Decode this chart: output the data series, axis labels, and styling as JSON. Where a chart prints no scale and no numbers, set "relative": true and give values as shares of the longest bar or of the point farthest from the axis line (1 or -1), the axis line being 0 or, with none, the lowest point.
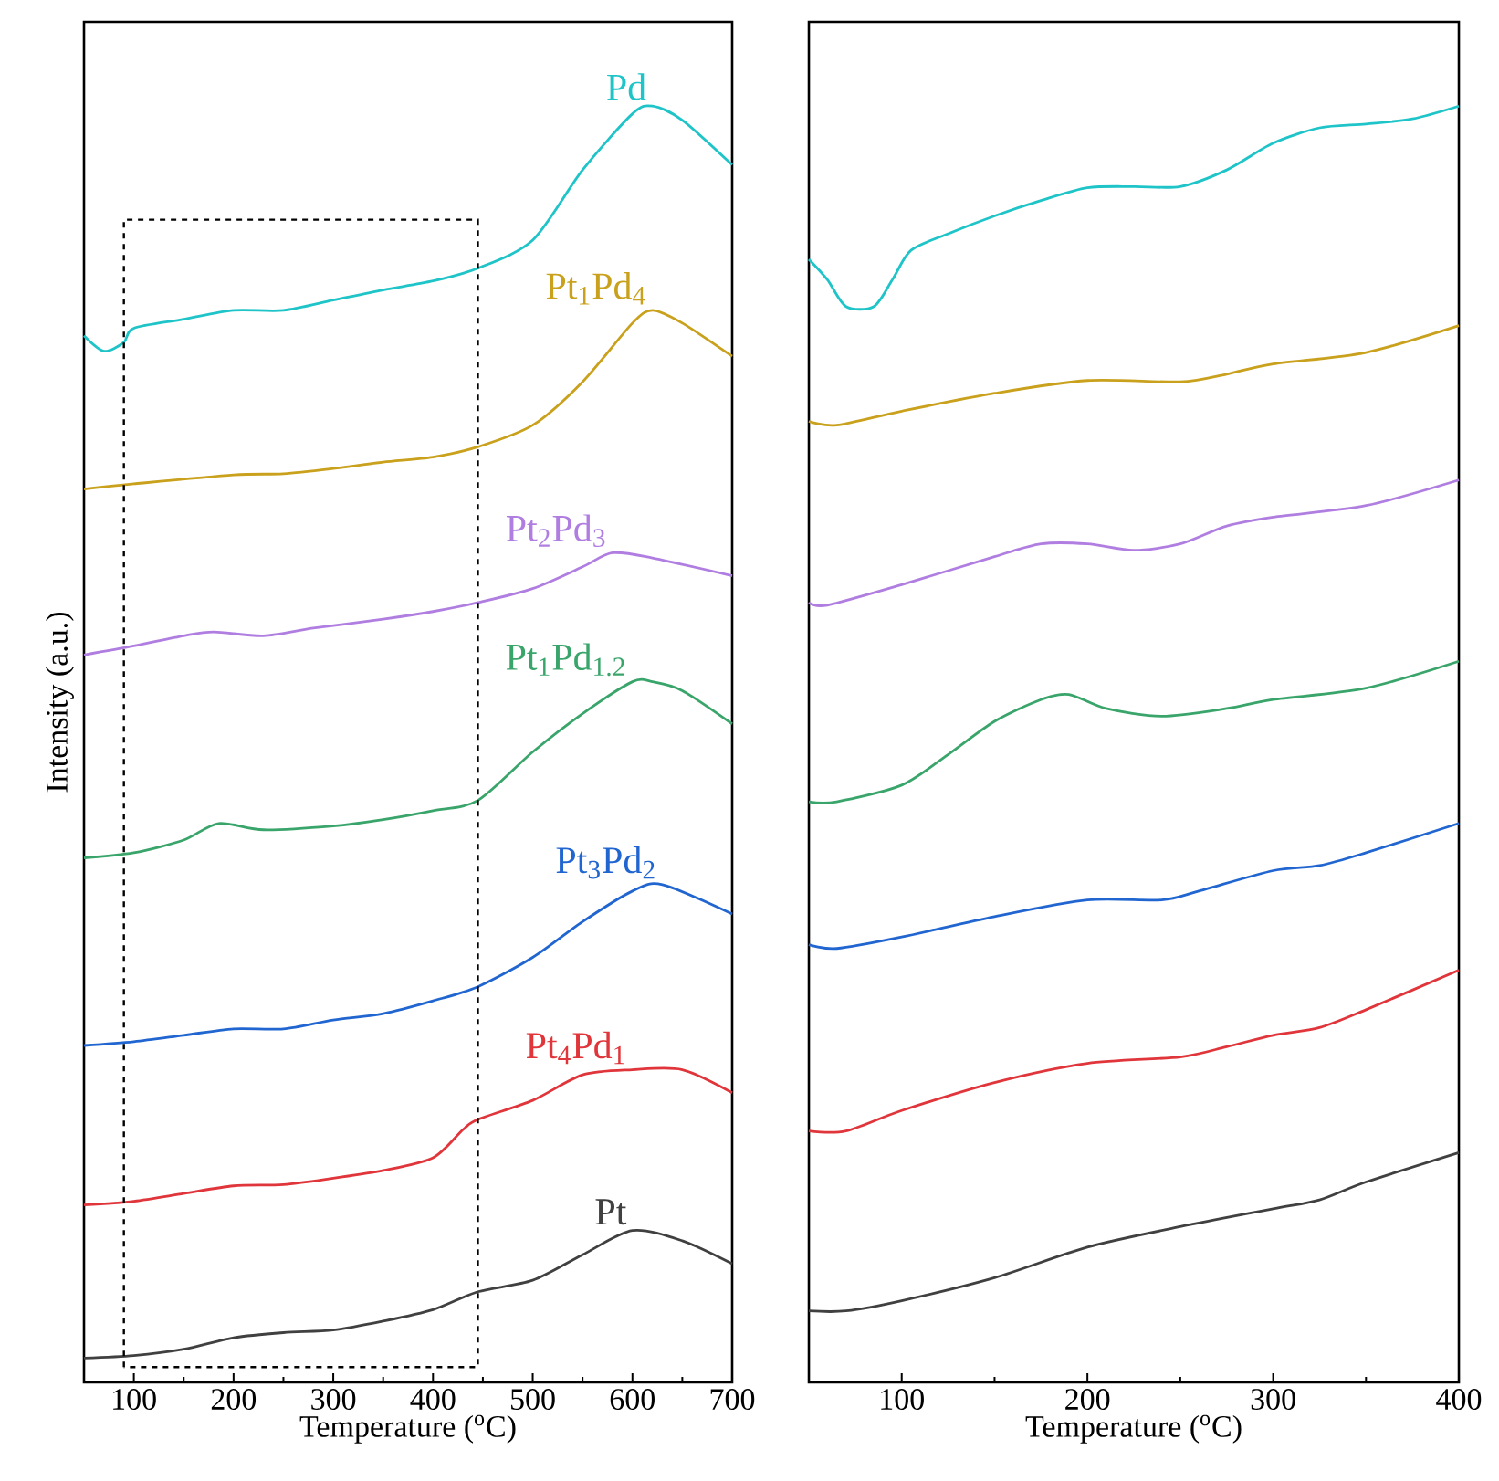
{
  "chart_data": [
    {
      "type": "line",
      "relative": true,
      "xlabel": "Temperature ($^{o}$C)",
      "ylabel": "Intensity (a.u.)",
      "xlim": [
        50,
        700
      ],
      "xticks": [
        100,
        200,
        300,
        400,
        500,
        600,
        700
      ],
      "line_style": "solid",
      "series": [
        {
          "name": "Pd",
          "color": "#1fc4c8",
          "x": [
            50,
            70,
            90,
            100,
            150,
            200,
            250,
            300,
            350,
            400,
            445,
            500,
            550,
            600,
            620,
            650,
            700
          ],
          "values": [
            0.82,
            0.808,
            0.815,
            0.826,
            0.833,
            0.84,
            0.84,
            0.848,
            0.856,
            0.863,
            0.873,
            0.895,
            0.95,
            0.994,
            1.0,
            0.989,
            0.954
          ]
        },
        {
          "name": "Pt$_{1}$Pd$_{4}$",
          "color": "#c9a11c",
          "x": [
            50,
            100,
            200,
            250,
            300,
            350,
            400,
            445,
            500,
            550,
            600,
            620,
            650,
            700
          ],
          "values": [
            0.7,
            0.704,
            0.711,
            0.712,
            0.716,
            0.721,
            0.725,
            0.733,
            0.75,
            0.784,
            0.83,
            0.84,
            0.83,
            0.804
          ]
        },
        {
          "name": "Pt$_{2}$Pd$_{3}$",
          "color": "#b07ee0",
          "x": [
            50,
            100,
            150,
            180,
            230,
            280,
            350,
            400,
            445,
            500,
            550,
            580,
            620,
            700
          ],
          "values": [
            0.57,
            0.577,
            0.585,
            0.588,
            0.585,
            0.591,
            0.598,
            0.604,
            0.611,
            0.622,
            0.639,
            0.65,
            0.646,
            0.632
          ]
        },
        {
          "name": "Pt$_{1}$Pd$_{1.2}$",
          "color": "#3aa56b",
          "x": [
            50,
            100,
            150,
            185,
            230,
            300,
            350,
            400,
            445,
            500,
            550,
            600,
            620,
            650,
            700
          ],
          "values": [
            0.411,
            0.415,
            0.425,
            0.438,
            0.433,
            0.436,
            0.441,
            0.448,
            0.456,
            0.494,
            0.524,
            0.549,
            0.549,
            0.542,
            0.516
          ]
        },
        {
          "name": "Pt$_{3}$Pd$_{2}$",
          "color": "#2166d0",
          "x": [
            50,
            100,
            150,
            200,
            250,
            300,
            350,
            400,
            445,
            500,
            550,
            600,
            630,
            700
          ],
          "values": [
            0.264,
            0.267,
            0.272,
            0.277,
            0.277,
            0.284,
            0.289,
            0.299,
            0.31,
            0.333,
            0.361,
            0.385,
            0.39,
            0.367
          ]
        },
        {
          "name": "Pt$_{4}$Pd$_{1}$",
          "color": "#e0353a",
          "x": [
            50,
            100,
            150,
            200,
            250,
            300,
            350,
            400,
            430,
            445,
            500,
            550,
            600,
            650,
            700
          ],
          "values": [
            0.139,
            0.142,
            0.148,
            0.154,
            0.155,
            0.16,
            0.166,
            0.176,
            0.198,
            0.206,
            0.221,
            0.241,
            0.245,
            0.245,
            0.227
          ]
        },
        {
          "name": "Pt",
          "color": "#404040",
          "x": [
            50,
            100,
            150,
            200,
            250,
            300,
            350,
            400,
            445,
            500,
            550,
            600,
            650,
            700
          ],
          "values": [
            0.019,
            0.021,
            0.026,
            0.035,
            0.039,
            0.041,
            0.048,
            0.057,
            0.071,
            0.08,
            0.1,
            0.119,
            0.111,
            0.093
          ]
        }
      ]
    },
    {
      "type": "line",
      "relative": true,
      "xlabel": "Temperature ($^{o}$C)",
      "xlim": [
        50,
        400
      ],
      "xticks": [
        100,
        200,
        300,
        400
      ],
      "line_style": "solid",
      "series": [
        {
          "color": "#1fc4c8",
          "x": [
            50,
            60,
            70,
            85,
            95,
            105,
            125,
            150,
            175,
            200,
            225,
            250,
            275,
            300,
            325,
            350,
            375,
            400
          ],
          "values": [
            0.88,
            0.864,
            0.843,
            0.843,
            0.864,
            0.887,
            0.9,
            0.914,
            0.926,
            0.936,
            0.937,
            0.937,
            0.95,
            0.971,
            0.983,
            0.986,
            0.99,
            1.0
          ]
        },
        {
          "color": "#c9a11c",
          "x": [
            50,
            65,
            100,
            150,
            200,
            250,
            275,
            300,
            350,
            400
          ],
          "values": [
            0.753,
            0.75,
            0.761,
            0.775,
            0.785,
            0.784,
            0.79,
            0.798,
            0.807,
            0.828
          ]
        },
        {
          "color": "#b07ee0",
          "x": [
            50,
            60,
            100,
            150,
            175,
            200,
            225,
            250,
            275,
            300,
            350,
            400
          ],
          "values": [
            0.611,
            0.609,
            0.625,
            0.647,
            0.657,
            0.657,
            0.652,
            0.657,
            0.671,
            0.678,
            0.687,
            0.707
          ]
        },
        {
          "color": "#3aa56b",
          "x": [
            50,
            65,
            100,
            125,
            150,
            175,
            190,
            210,
            240,
            275,
            300,
            350,
            400
          ],
          "values": [
            0.455,
            0.455,
            0.468,
            0.492,
            0.518,
            0.535,
            0.539,
            0.528,
            0.522,
            0.528,
            0.535,
            0.544,
            0.565
          ]
        },
        {
          "color": "#2166d0",
          "x": [
            50,
            65,
            100,
            150,
            200,
            240,
            260,
            300,
            325,
            350,
            400
          ],
          "values": [
            0.343,
            0.34,
            0.349,
            0.365,
            0.378,
            0.378,
            0.385,
            0.401,
            0.405,
            0.415,
            0.438
          ]
        },
        {
          "color": "#e0353a",
          "x": [
            50,
            70,
            100,
            150,
            200,
            250,
            275,
            300,
            325,
            350,
            400
          ],
          "values": [
            0.197,
            0.197,
            0.213,
            0.235,
            0.25,
            0.255,
            0.263,
            0.272,
            0.278,
            0.292,
            0.323
          ]
        },
        {
          "color": "#404040",
          "x": [
            50,
            70,
            100,
            150,
            200,
            250,
            300,
            325,
            350,
            400
          ],
          "values": [
            0.056,
            0.056,
            0.064,
            0.082,
            0.106,
            0.122,
            0.136,
            0.143,
            0.157,
            0.18
          ]
        }
      ]
    }
  ]
}
